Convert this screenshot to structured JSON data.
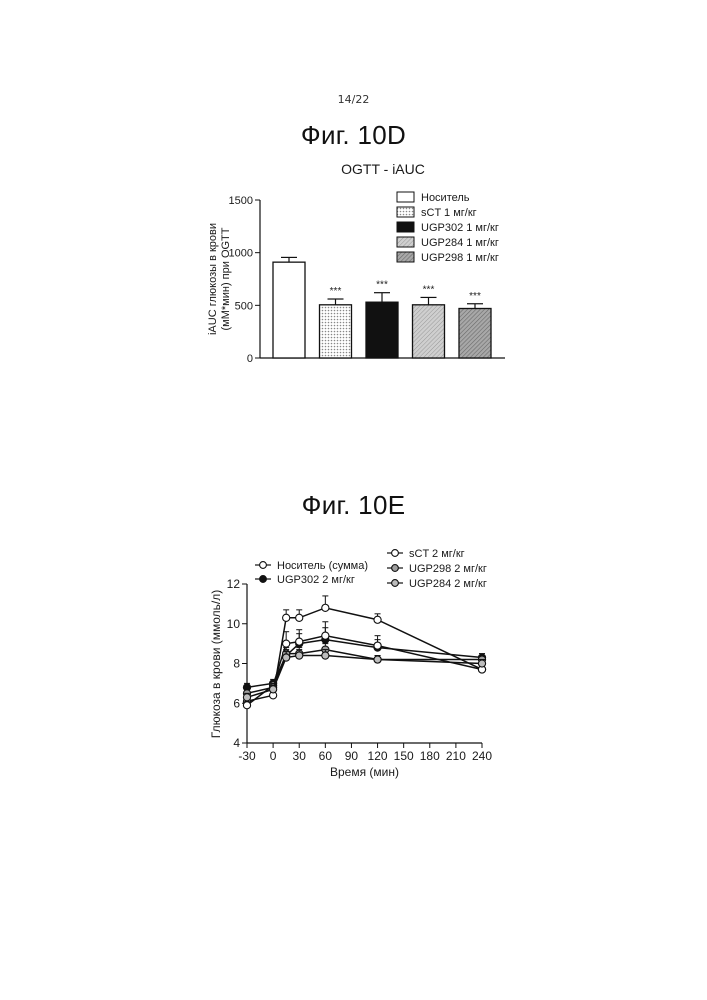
{
  "page": {
    "number": "14/22"
  },
  "figures": [
    {
      "label": "Фиг. 10D"
    },
    {
      "label": "Фиг. 10E"
    }
  ],
  "chart_data": [
    {
      "type": "bar",
      "title": "OGTT - iAUC",
      "ylabel_lines": [
        "iAUC глюкозы в крови",
        "(мМ*мин) при OGTT"
      ],
      "xlabel": "",
      "ylim": [
        0,
        1500
      ],
      "yticks": [
        0,
        500,
        1000,
        1500
      ],
      "legend_position": "top-right",
      "categories": [
        "Носитель",
        "sCT 1 мг/кг",
        "UGP302 1 мг/кг",
        "UGP284 1 мг/кг",
        "UGP298 1 мг/кг"
      ],
      "values": [
        910,
        505,
        530,
        505,
        470
      ],
      "errors": [
        45,
        55,
        90,
        70,
        45
      ],
      "annotations": [
        "",
        "***",
        "***",
        "***",
        "***"
      ],
      "fills": [
        "white",
        "dots",
        "black",
        "hatch-light",
        "hatch-dark"
      ]
    },
    {
      "type": "line",
      "title": "",
      "xlabel": "Время (мин)",
      "ylabel": "Глюкоза в крови (ммоль/л)",
      "xlim": [
        -30,
        240
      ],
      "ylim": [
        4,
        12
      ],
      "xticks": [
        -30,
        0,
        30,
        60,
        90,
        120,
        150,
        180,
        210,
        240
      ],
      "yticks": [
        4,
        6,
        8,
        10,
        12
      ],
      "legend_position": "top",
      "x": [
        -30,
        0,
        15,
        30,
        60,
        120,
        240
      ],
      "series": [
        {
          "name": "Носитель (сумма)",
          "marker": "open",
          "values": [
            6.1,
            6.4,
            10.3,
            10.3,
            10.8,
            10.2,
            7.7
          ],
          "errors": [
            0.3,
            0.2,
            0.4,
            0.4,
            0.6,
            0.3,
            0.2
          ]
        },
        {
          "name": "UGP302 2 мг/кг",
          "marker": "filled",
          "values": [
            6.8,
            7.0,
            8.4,
            9.0,
            9.2,
            8.8,
            8.3
          ],
          "errors": [
            0.2,
            0.2,
            0.3,
            0.5,
            0.6,
            0.4,
            0.2
          ]
        },
        {
          "name": "sCT 2 мг/кг",
          "marker": "open",
          "values": [
            5.9,
            6.9,
            9.0,
            9.1,
            9.4,
            8.9,
            7.7
          ],
          "errors": [
            0.2,
            0.2,
            0.6,
            0.6,
            0.7,
            0.5,
            0.2
          ]
        },
        {
          "name": "UGP298 2 мг/кг",
          "marker": "dotted",
          "values": [
            6.5,
            6.8,
            8.5,
            8.5,
            8.7,
            8.2,
            8.2
          ],
          "errors": [
            0.2,
            0.2,
            0.3,
            0.3,
            0.3,
            0.2,
            0.2
          ]
        },
        {
          "name": "UGP284 2 мг/кг",
          "marker": "grey",
          "values": [
            6.3,
            6.7,
            8.3,
            8.4,
            8.4,
            8.2,
            8.0
          ],
          "errors": [
            0.2,
            0.2,
            0.3,
            0.3,
            0.3,
            0.2,
            0.2
          ]
        }
      ]
    }
  ]
}
